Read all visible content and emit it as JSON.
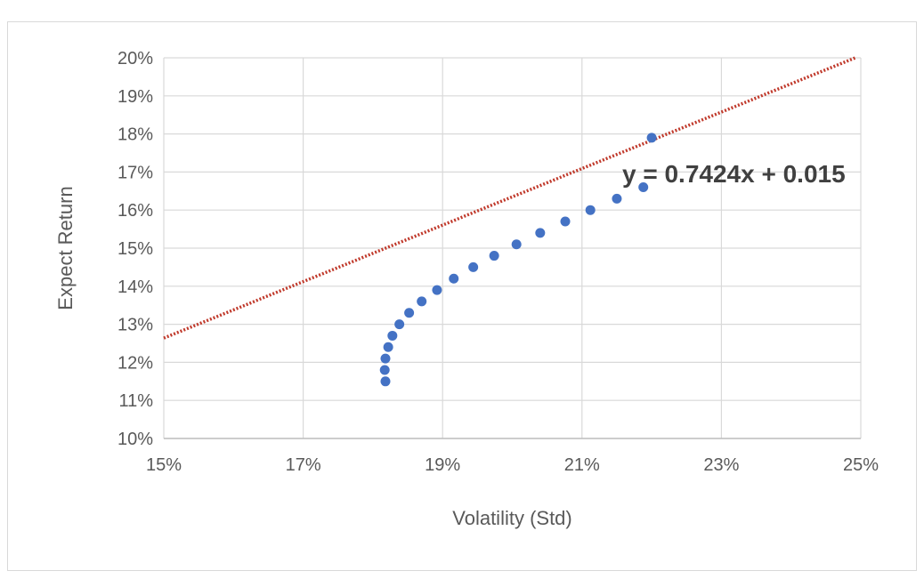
{
  "chart_data": {
    "type": "scatter",
    "title": "",
    "xlabel": "Volatility (Std)",
    "ylabel": "Expect Return",
    "xlim": [
      0.15,
      0.25
    ],
    "ylim": [
      0.1,
      0.2
    ],
    "x_ticks": [
      "15%",
      "17%",
      "19%",
      "21%",
      "23%",
      "25%"
    ],
    "y_ticks": [
      "10%",
      "11%",
      "12%",
      "13%",
      "14%",
      "15%",
      "16%",
      "17%",
      "18%",
      "19%",
      "20%"
    ],
    "grid": true,
    "legend": "none",
    "trendline_label": "y = 0.7424x + 0.015",
    "series": [
      {
        "kind": "points",
        "color": "#4472c4",
        "x": [
          0.1818,
          0.1817,
          0.1818,
          0.1822,
          0.1828,
          0.1838,
          0.1852,
          0.187,
          0.1892,
          0.1916,
          0.1944,
          0.1974,
          0.2006,
          0.204,
          0.2076,
          0.2112,
          0.215,
          0.2188,
          0.22
        ],
        "y": [
          0.115,
          0.118,
          0.121,
          0.124,
          0.127,
          0.13,
          0.133,
          0.136,
          0.139,
          0.142,
          0.145,
          0.148,
          0.151,
          0.154,
          0.157,
          0.16,
          0.163,
          0.166,
          0.179
        ]
      },
      {
        "kind": "trendline",
        "color": "#c0392b",
        "slope": 0.7424,
        "intercept": 0.015
      }
    ]
  }
}
